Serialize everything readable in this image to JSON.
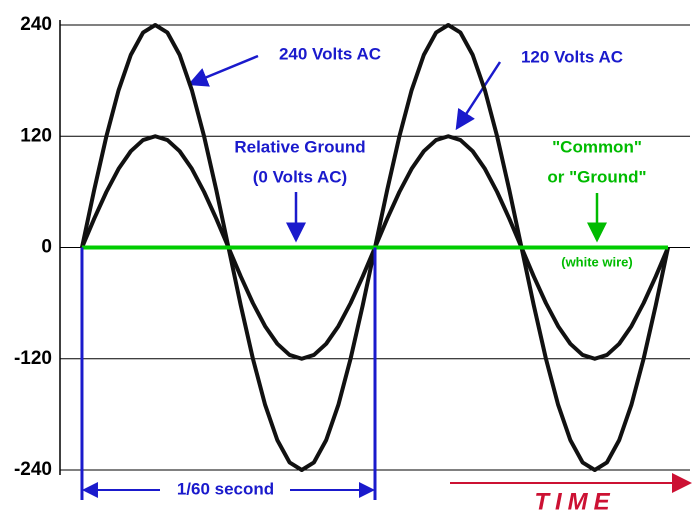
{
  "chart_data": {
    "type": "line",
    "x": [
      0,
      15,
      30,
      45,
      60,
      75,
      90,
      105,
      120,
      135,
      150,
      165,
      180,
      195,
      210,
      225,
      240,
      255,
      270,
      285,
      300,
      315,
      330,
      345,
      360,
      375,
      390,
      405,
      420,
      435,
      450,
      465,
      480,
      495,
      510,
      525,
      540,
      555,
      570,
      585,
      600,
      615,
      630,
      645,
      660,
      675,
      690,
      705,
      720
    ],
    "series": [
      {
        "color": "#111111",
        "values": [
          0,
          62.1,
          120,
          169.7,
          207.8,
          231.8,
          240,
          231.8,
          207.8,
          169.7,
          120,
          62.1,
          0,
          -62.1,
          -120,
          -169.7,
          -207.8,
          -231.8,
          -240,
          -231.8,
          -207.8,
          -169.7,
          -120,
          -62.1,
          0,
          62.1,
          120,
          169.7,
          207.8,
          231.8,
          240,
          231.8,
          207.8,
          169.7,
          120,
          62.1,
          0,
          -62.1,
          -120,
          -169.7,
          -207.8,
          -231.8,
          -240,
          -231.8,
          -207.8,
          -169.7,
          -120,
          -62.1,
          0
        ]
      },
      {
        "color": "#111111",
        "values": [
          0,
          31.1,
          60,
          84.9,
          103.9,
          115.9,
          120,
          115.9,
          103.9,
          84.9,
          60,
          31.1,
          0,
          -31.1,
          -60,
          -84.9,
          -103.9,
          -115.9,
          -120,
          -115.9,
          -103.9,
          -84.9,
          -60,
          -31.1,
          0,
          31.1,
          60,
          84.9,
          103.9,
          115.9,
          120,
          115.9,
          103.9,
          84.9,
          60,
          31.1,
          0,
          -31.1,
          -60,
          -84.9,
          -103.9,
          -115.9,
          -120,
          -115.9,
          -103.9,
          -84.9,
          -60,
          -31.1,
          0
        ]
      }
    ],
    "ground": {
      "value": 0,
      "x": [
        0,
        720
      ],
      "color": "#00cc00"
    },
    "span": {
      "x": [
        0,
        360
      ],
      "label": "1/60 second",
      "color": "#1a1acc"
    },
    "xlim": [
      -27,
      747
    ],
    "ylim": [
      -240,
      240
    ],
    "yticks": [
      240,
      120,
      0,
      -120,
      -240
    ],
    "grid": true,
    "annotations": [
      {
        "text": "240 Volts AC",
        "color": "#1a1acc"
      },
      {
        "text": "120 Volts AC",
        "color": "#1a1acc"
      },
      {
        "text": "Relative Ground",
        "color": "#1a1acc"
      },
      {
        "text": "(0 Volts AC)",
        "color": "#1a1acc"
      },
      {
        "text": "\"Common\"",
        "color": "#00bb00"
      },
      {
        "text": "or \"Ground\"",
        "color": "#00bb00"
      },
      {
        "text": "(white wire)",
        "color": "#00bb00"
      }
    ],
    "x_label": {
      "text": "TIME",
      "color": "#cc1133"
    }
  }
}
